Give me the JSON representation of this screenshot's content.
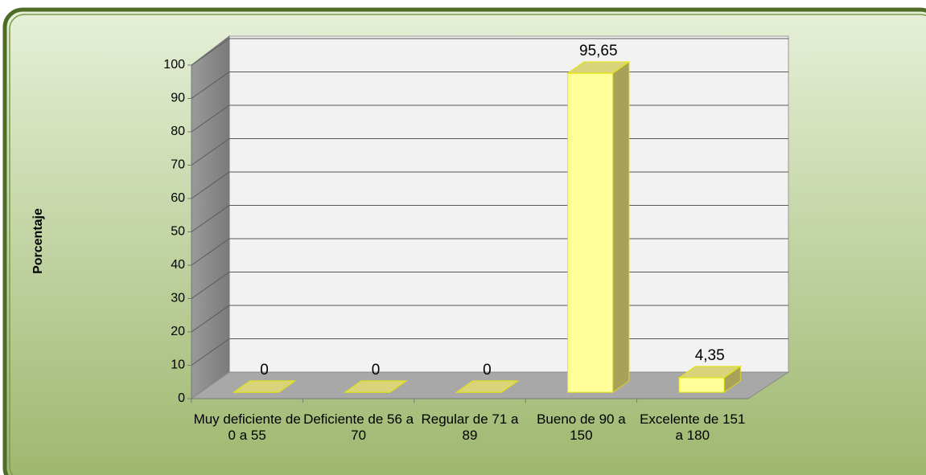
{
  "chart_data": {
    "type": "bar3d",
    "ylabel": "Porcentaje",
    "categories": [
      "Muy deficiente de 0 a 55",
      "Deficiente de 56 a 70",
      "Regular de 71 a 89",
      "Bueno de 90 a 150",
      "Excelente de 151 a 180"
    ],
    "values": [
      0,
      0,
      0,
      95.65,
      4.35
    ],
    "value_labels": [
      "0",
      "0",
      "0",
      "95,65",
      "4,35"
    ],
    "color": "#ffff99",
    "ylim": [
      0,
      100
    ],
    "yticks": [
      0,
      10,
      20,
      30,
      40,
      50,
      60,
      70,
      80,
      90,
      100
    ],
    "grid": true
  }
}
